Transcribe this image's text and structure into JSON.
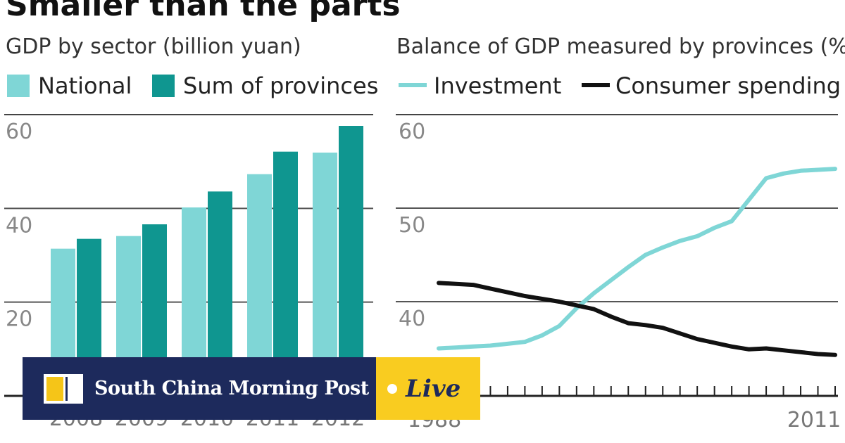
{
  "headline": "Smaller than the parts",
  "chart_data": [
    {
      "type": "bar",
      "title": "GDP by sector (billion yuan)",
      "categories": [
        "2008",
        "2009",
        "2010",
        "2011",
        "2012"
      ],
      "series": [
        {
          "name": "National",
          "values": [
            31.4,
            34.1,
            40.2,
            47.3,
            51.9
          ],
          "color": "#7fd6d6"
        },
        {
          "name": "Sum of provinces",
          "values": [
            33.5,
            36.6,
            43.6,
            52.1,
            57.6
          ],
          "color": "#0f9690"
        }
      ],
      "yticks": [
        "60",
        "40",
        "20"
      ],
      "ylim": [
        0,
        60
      ],
      "grid": true,
      "legend": "top"
    },
    {
      "type": "line",
      "title": "Balance of GDP measured by provinces (%)",
      "x": [
        1988,
        1989,
        1990,
        1991,
        1992,
        1993,
        1994,
        1995,
        1996,
        1997,
        1998,
        1999,
        2000,
        2001,
        2002,
        2003,
        2004,
        2005,
        2006,
        2007,
        2008,
        2009,
        2010,
        2011
      ],
      "series": [
        {
          "name": "Investment",
          "color": "#7fd6d6",
          "values": [
            35.0,
            35.1,
            35.2,
            35.3,
            35.5,
            35.7,
            36.4,
            37.4,
            39.3,
            40.9,
            42.3,
            43.7,
            45.0,
            45.8,
            46.5,
            47.0,
            47.9,
            48.6,
            50.9,
            53.2,
            53.7,
            54.0,
            54.1,
            54.2
          ]
        },
        {
          "name": "Consumer spending",
          "color": "#111111",
          "values": [
            42.0,
            41.9,
            41.8,
            41.4,
            41.0,
            40.6,
            40.3,
            40.0,
            39.6,
            39.2,
            38.4,
            37.7,
            37.5,
            37.2,
            36.6,
            36.0,
            35.6,
            35.2,
            34.9,
            35.0,
            34.8,
            34.6,
            34.4,
            34.3
          ]
        }
      ],
      "yticks": [
        "60",
        "50",
        "40"
      ],
      "ylim": [
        35,
        60
      ],
      "xticklabels": [
        "1988",
        "2011"
      ],
      "grid": true,
      "legend": "top"
    }
  ],
  "banner": {
    "brand": "South China Morning Post",
    "live": "Live"
  }
}
